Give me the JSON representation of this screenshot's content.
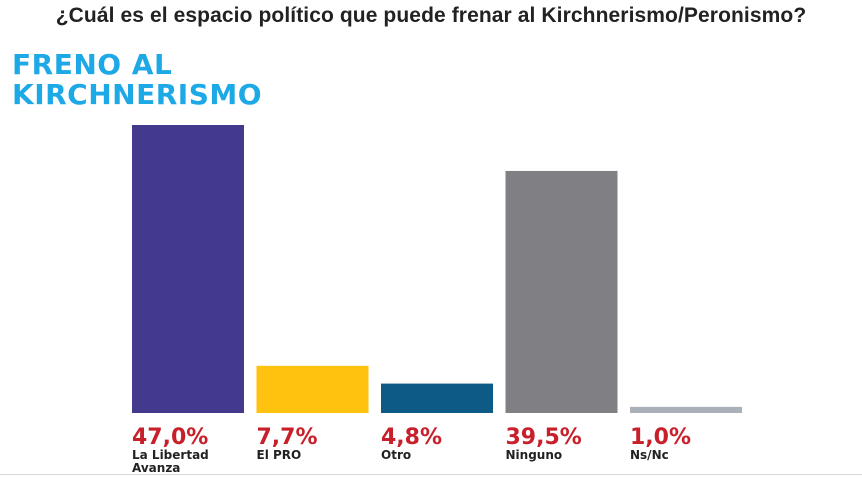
{
  "question": "¿Cuál es el espacio político que puede frenar al Kirchnerismo/Peronismo?",
  "title_lines": [
    "FRENO AL",
    "KIRCHNERISMO"
  ],
  "colors": {
    "title": "#1da8e6",
    "value_text": "#c8202b",
    "label_text": "#222222"
  },
  "chart_data": {
    "type": "bar",
    "title": "FRENO AL KIRCHNERISMO",
    "categories": [
      "La Libertad Avanza",
      "El PRO",
      "Otro",
      "Ninguno",
      "Ns/Nc"
    ],
    "values": [
      47.0,
      7.7,
      4.8,
      39.5,
      1.0
    ],
    "value_labels": [
      "47,0%",
      "7,7%",
      "4,8%",
      "39,5%",
      "1,0%"
    ],
    "category_label_lines": [
      [
        "La Libertad",
        "Avanza"
      ],
      [
        "El PRO"
      ],
      [
        "Otro"
      ],
      [
        "Ninguno"
      ],
      [
        "Ns/Nc"
      ]
    ],
    "bar_colors": [
      "#433a8e",
      "#ffc20e",
      "#0e5a86",
      "#808084",
      "#a9b0b8"
    ],
    "ylim": [
      0,
      47
    ],
    "grid": false,
    "legend": "none"
  }
}
